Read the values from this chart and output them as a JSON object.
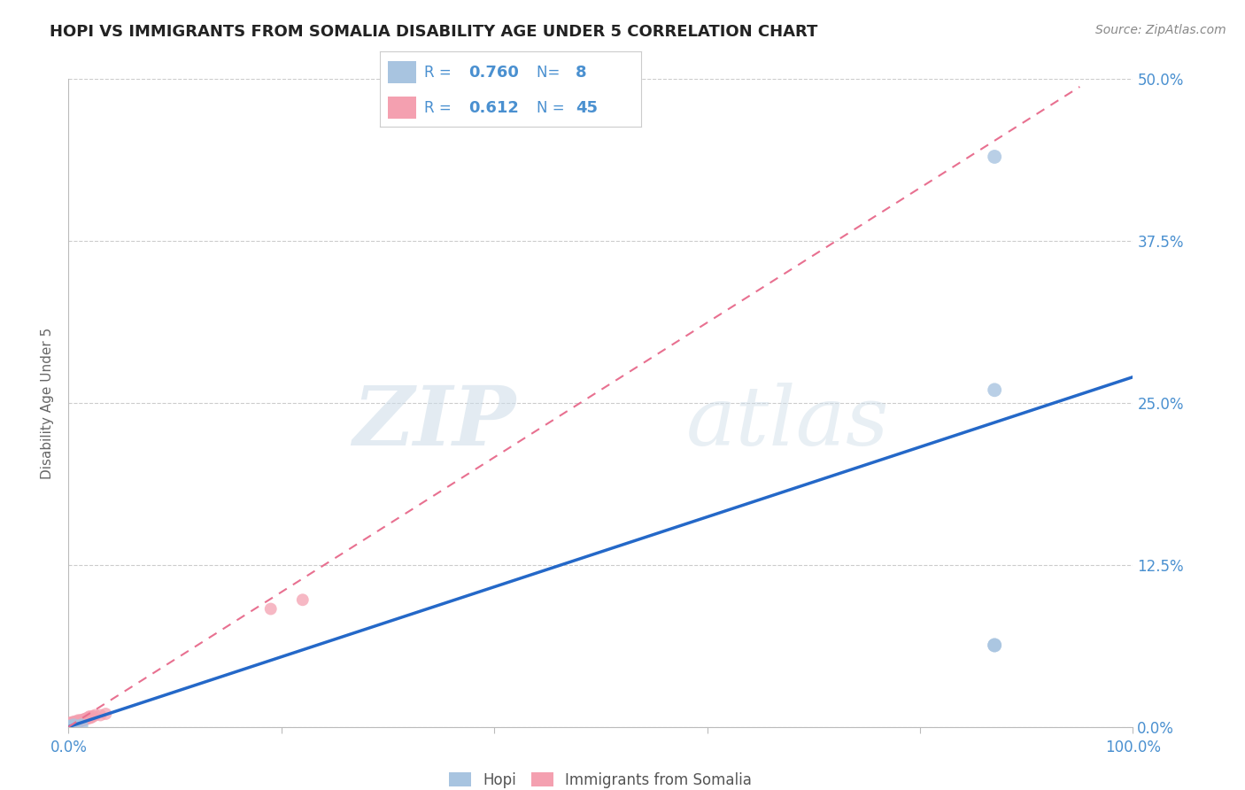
{
  "title": "HOPI VS IMMIGRANTS FROM SOMALIA DISABILITY AGE UNDER 5 CORRELATION CHART",
  "source": "Source: ZipAtlas.com",
  "ylabel": "Disability Age Under 5",
  "xlim": [
    0.0,
    1.0
  ],
  "ylim": [
    0.0,
    0.5
  ],
  "yticks": [
    0.0,
    0.125,
    0.25,
    0.375,
    0.5
  ],
  "ytick_labels": [
    "0.0%",
    "12.5%",
    "25.0%",
    "37.5%",
    "50.0%"
  ],
  "xticks": [
    0.0,
    0.2,
    0.4,
    0.6,
    0.8,
    1.0
  ],
  "xtick_labels": [
    "0.0%",
    "",
    "",
    "",
    "",
    "100.0%"
  ],
  "hopi_x": [
    0.0,
    0.001,
    0.005,
    0.012,
    0.87,
    0.87,
    0.87,
    0.87
  ],
  "hopi_y": [
    0.0,
    0.0,
    0.001,
    0.001,
    0.063,
    0.26,
    0.44,
    0.063
  ],
  "somalia_x": [
    0.0,
    0.0,
    0.0,
    0.0,
    0.0,
    0.001,
    0.001,
    0.001,
    0.002,
    0.002,
    0.003,
    0.003,
    0.004,
    0.004,
    0.005,
    0.005,
    0.005,
    0.006,
    0.007,
    0.007,
    0.008,
    0.008,
    0.009,
    0.009,
    0.009,
    0.01,
    0.01,
    0.011,
    0.012,
    0.013,
    0.014,
    0.015,
    0.016,
    0.017,
    0.018,
    0.019,
    0.02,
    0.02,
    0.021,
    0.023,
    0.025,
    0.03,
    0.035,
    0.19,
    0.22
  ],
  "somalia_y": [
    0.0,
    0.0,
    0.001,
    0.001,
    0.002,
    0.001,
    0.002,
    0.003,
    0.002,
    0.003,
    0.002,
    0.003,
    0.003,
    0.003,
    0.003,
    0.003,
    0.004,
    0.003,
    0.003,
    0.004,
    0.003,
    0.004,
    0.003,
    0.004,
    0.005,
    0.004,
    0.004,
    0.005,
    0.005,
    0.005,
    0.005,
    0.006,
    0.006,
    0.006,
    0.007,
    0.007,
    0.007,
    0.008,
    0.007,
    0.008,
    0.009,
    0.009,
    0.01,
    0.091,
    0.098
  ],
  "hopi_color": "#a8c4e0",
  "somalia_color": "#f4a0b0",
  "hopi_line_color": "#2468c8",
  "somalia_line_color": "#e87090",
  "hopi_line_intercept": 0.0,
  "hopi_line_slope": 0.27,
  "somalia_line_intercept": 0.0,
  "somalia_line_slope": 0.52,
  "somalia_line_xmax": 0.95,
  "text_color": "#4a90d0",
  "background_color": "#ffffff",
  "watermark_zip": "ZIP",
  "watermark_atlas": "atlas",
  "title_fontsize": 13,
  "axis_label_fontsize": 11,
  "tick_fontsize": 12,
  "legend_R_hopi": "0.760",
  "legend_N_hopi": "8",
  "legend_R_somalia": "0.612",
  "legend_N_somalia": "45"
}
